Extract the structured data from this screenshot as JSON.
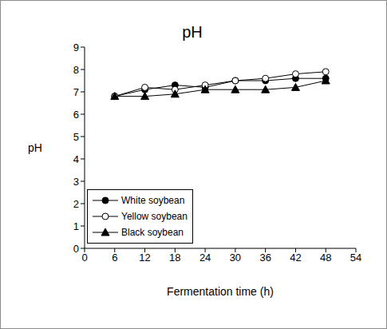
{
  "chart_data": {
    "type": "line",
    "title": "pH",
    "x_label": "Fermentation time (h)",
    "y_label": "pH",
    "x": [
      6,
      12,
      18,
      24,
      30,
      36,
      42,
      48
    ],
    "series": [
      {
        "name": "White soybean",
        "color": "#000000",
        "marker": "circle",
        "values": [
          6.8,
          7.1,
          7.3,
          7.2,
          7.5,
          7.5,
          7.6,
          7.6
        ]
      },
      {
        "name": "Yellow soybean",
        "color": "#000000",
        "marker": "open_circle",
        "values": [
          6.8,
          7.2,
          7.1,
          7.3,
          7.5,
          7.6,
          7.8,
          7.9
        ]
      },
      {
        "name": "Black soybean",
        "color": "#000000",
        "marker": "triangle",
        "values": [
          6.8,
          6.8,
          6.9,
          7.1,
          7.1,
          7.1,
          7.2,
          7.5
        ]
      }
    ],
    "xlim": [
      0,
      54
    ],
    "xticks": [
      0,
      6,
      12,
      18,
      24,
      30,
      36,
      42,
      48,
      54
    ],
    "ylim": [
      0,
      9
    ],
    "yticks": [
      0,
      1,
      2,
      3,
      4,
      5,
      6,
      7,
      8,
      9
    ],
    "grid": false,
    "legend": "lower left"
  }
}
